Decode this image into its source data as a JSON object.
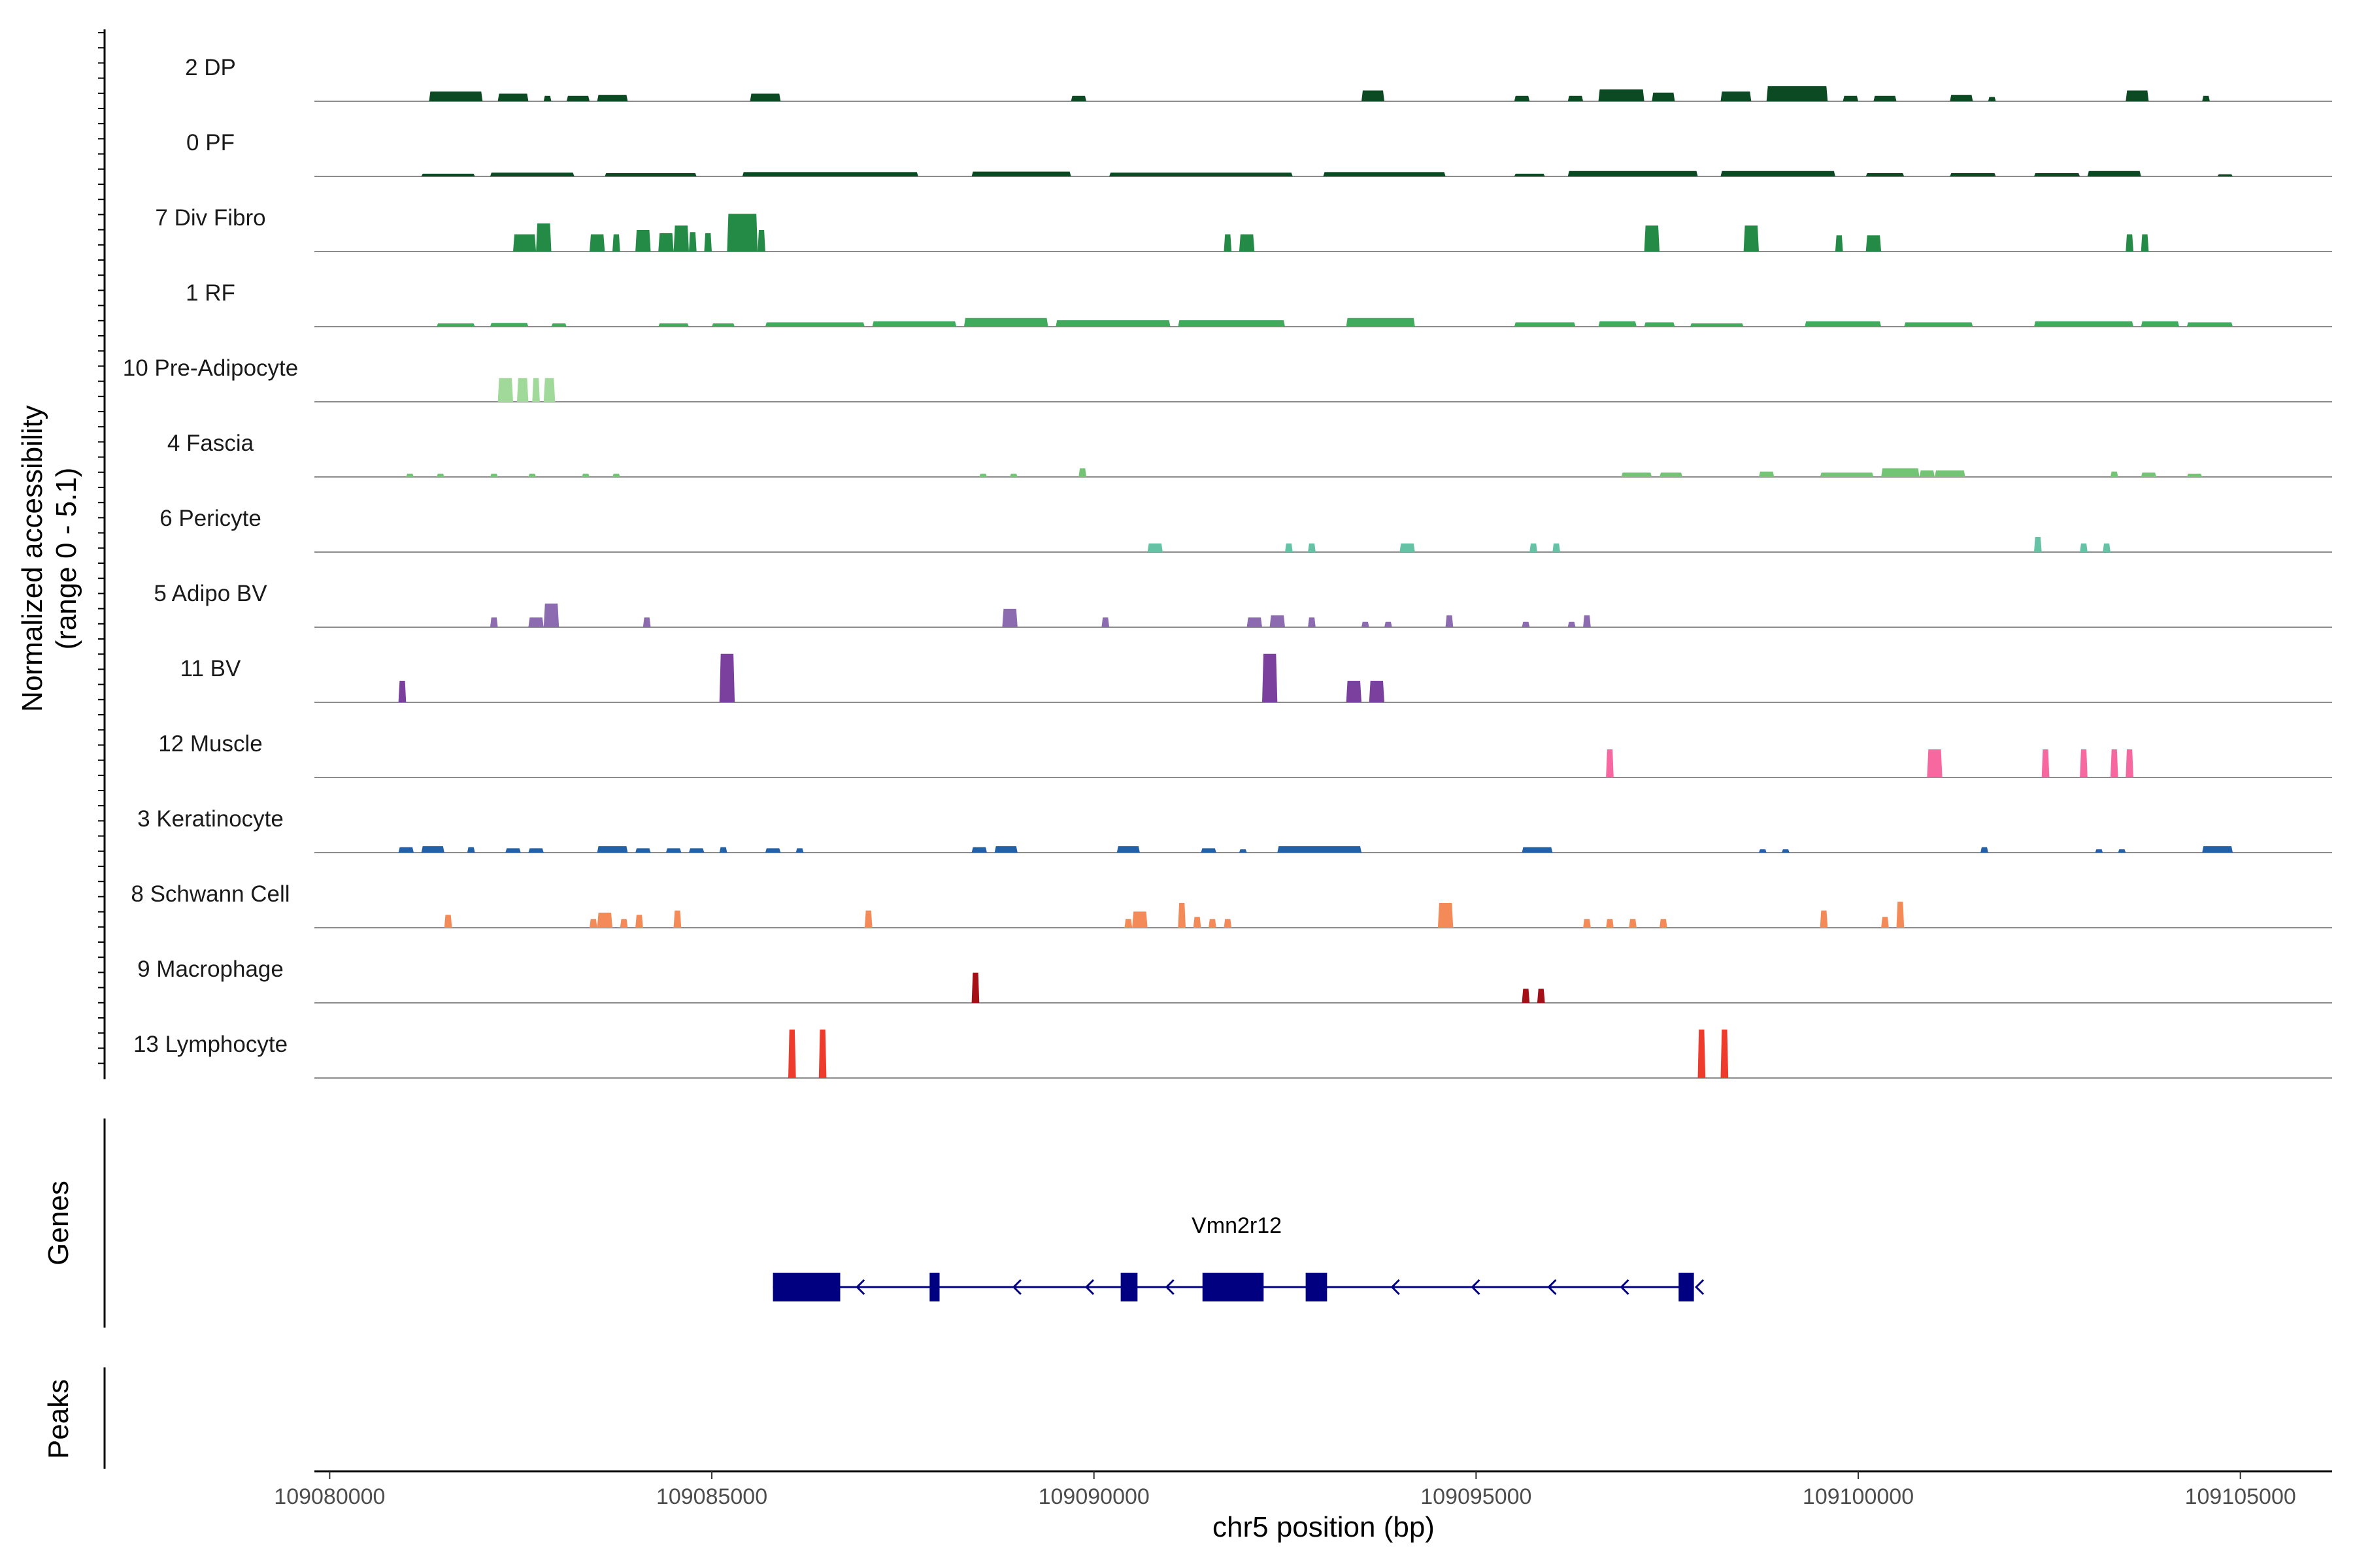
{
  "chart_data": {
    "type": "area",
    "title": "",
    "y_axis_title_line1": "Normalized accessibility",
    "y_axis_title_line2": "(range 0 - 5.1)",
    "y_range": [
      0,
      5.1
    ],
    "xlabel": "chr5 position (bp)",
    "xlim": [
      109079800,
      109106200
    ],
    "x_ticks": [
      109080000,
      109085000,
      109090000,
      109095000,
      109100000,
      109105000
    ],
    "x_tick_labels": [
      "109080000",
      "109085000",
      "109090000",
      "109095000",
      "109100000",
      "109105000"
    ],
    "genes_label": "Genes",
    "peaks_label": "Peaks",
    "tracks": [
      {
        "name": "2 DP",
        "color": "#0b4a22",
        "segments": [
          [
            109081300,
            109082000,
            0.9
          ],
          [
            109082200,
            109082600,
            0.7
          ],
          [
            109082800,
            109082900,
            0.5
          ],
          [
            109083100,
            109083400,
            0.5
          ],
          [
            109083500,
            109083900,
            0.6
          ],
          [
            109085500,
            109085900,
            0.7
          ],
          [
            109089700,
            109089900,
            0.5
          ],
          [
            109093500,
            109093800,
            1.0
          ],
          [
            109095500,
            109095700,
            0.5
          ],
          [
            109096200,
            109096400,
            0.5
          ],
          [
            109096600,
            109097200,
            1.1
          ],
          [
            109097300,
            109097600,
            0.8
          ],
          [
            109098200,
            109098600,
            0.9
          ],
          [
            109098800,
            109099600,
            1.4
          ],
          [
            109099800,
            109100000,
            0.5
          ],
          [
            109100200,
            109100500,
            0.5
          ],
          [
            109101200,
            109101500,
            0.6
          ],
          [
            109101700,
            109101800,
            0.4
          ],
          [
            109103500,
            109103800,
            1.0
          ],
          [
            109104500,
            109104600,
            0.5
          ]
        ]
      },
      {
        "name": "0 PF",
        "color": "#0b4a22",
        "segments": [
          [
            109081200,
            109081900,
            0.25
          ],
          [
            109082100,
            109083200,
            0.35
          ],
          [
            109083600,
            109084800,
            0.3
          ],
          [
            109085400,
            109087700,
            0.4
          ],
          [
            109088400,
            109089700,
            0.45
          ],
          [
            109090200,
            109092600,
            0.35
          ],
          [
            109093000,
            109094600,
            0.4
          ],
          [
            109095500,
            109095900,
            0.25
          ],
          [
            109096200,
            109097900,
            0.5
          ],
          [
            109098200,
            109099700,
            0.5
          ],
          [
            109100100,
            109100600,
            0.3
          ],
          [
            109101200,
            109101800,
            0.3
          ],
          [
            109102300,
            109102900,
            0.3
          ],
          [
            109103000,
            109103700,
            0.5
          ],
          [
            109104700,
            109104900,
            0.2
          ]
        ]
      },
      {
        "name": "7 Div Fibro",
        "color": "#238b45",
        "segments": [
          [
            109082400,
            109082700,
            1.6
          ],
          [
            109082700,
            109082900,
            2.6
          ],
          [
            109083400,
            109083600,
            1.6
          ],
          [
            109083700,
            109083800,
            1.6
          ],
          [
            109084000,
            109084200,
            2.0
          ],
          [
            109084300,
            109084500,
            1.7
          ],
          [
            109084500,
            109084700,
            2.4
          ],
          [
            109084700,
            109084800,
            1.8
          ],
          [
            109084900,
            109085000,
            1.7
          ],
          [
            109085200,
            109085600,
            3.5
          ],
          [
            109085600,
            109085700,
            2.0
          ],
          [
            109091700,
            109091800,
            1.6
          ],
          [
            109091900,
            109092100,
            1.6
          ],
          [
            109097200,
            109097400,
            2.4
          ],
          [
            109098500,
            109098700,
            2.4
          ],
          [
            109099700,
            109099800,
            1.5
          ],
          [
            109100100,
            109100300,
            1.5
          ],
          [
            109103500,
            109103600,
            1.6
          ],
          [
            109103700,
            109103800,
            1.6
          ]
        ]
      },
      {
        "name": "1 RF",
        "color": "#41ab5d",
        "segments": [
          [
            109081400,
            109081900,
            0.3
          ],
          [
            109082100,
            109082600,
            0.35
          ],
          [
            109082900,
            109083100,
            0.3
          ],
          [
            109084300,
            109084700,
            0.3
          ],
          [
            109085000,
            109085300,
            0.3
          ],
          [
            109085700,
            109087000,
            0.4
          ],
          [
            109087100,
            109088200,
            0.5
          ],
          [
            109088300,
            109089400,
            0.8
          ],
          [
            109089500,
            109091000,
            0.6
          ],
          [
            109091100,
            109092500,
            0.6
          ],
          [
            109093300,
            109094200,
            0.8
          ],
          [
            109095500,
            109096300,
            0.4
          ],
          [
            109096600,
            109097100,
            0.5
          ],
          [
            109097200,
            109097600,
            0.4
          ],
          [
            109097800,
            109098500,
            0.3
          ],
          [
            109099300,
            109100300,
            0.5
          ],
          [
            109100600,
            109101500,
            0.4
          ],
          [
            109102300,
            109103600,
            0.5
          ],
          [
            109103700,
            109104200,
            0.5
          ],
          [
            109104300,
            109104900,
            0.4
          ]
        ]
      },
      {
        "name": "10 Pre-Adipocyte",
        "color": "#a1d99b",
        "segments": [
          [
            109082200,
            109082400,
            2.2
          ],
          [
            109082450,
            109082600,
            2.2
          ],
          [
            109082650,
            109082750,
            2.2
          ],
          [
            109082800,
            109082950,
            2.2
          ]
        ]
      },
      {
        "name": "4 Fascia",
        "color": "#74c476",
        "segments": [
          [
            109081000,
            109081100,
            0.3
          ],
          [
            109081400,
            109081500,
            0.3
          ],
          [
            109082100,
            109082200,
            0.3
          ],
          [
            109082600,
            109082700,
            0.3
          ],
          [
            109083300,
            109083400,
            0.3
          ],
          [
            109083700,
            109083800,
            0.3
          ],
          [
            109088500,
            109088600,
            0.3
          ],
          [
            109088900,
            109089000,
            0.3
          ],
          [
            109089800,
            109089900,
            0.8
          ],
          [
            109096900,
            109097300,
            0.4
          ],
          [
            109097400,
            109097700,
            0.4
          ],
          [
            109098700,
            109098900,
            0.5
          ],
          [
            109099500,
            109100200,
            0.4
          ],
          [
            109100300,
            109100800,
            0.8
          ],
          [
            109100800,
            109101000,
            0.6
          ],
          [
            109101000,
            109101400,
            0.6
          ],
          [
            109103300,
            109103400,
            0.5
          ],
          [
            109103700,
            109103900,
            0.4
          ],
          [
            109104300,
            109104500,
            0.3
          ]
        ]
      },
      {
        "name": "6 Pericyte",
        "color": "#66c2a4",
        "segments": [
          [
            109090700,
            109090900,
            0.8
          ],
          [
            109092500,
            109092600,
            0.8
          ],
          [
            109092800,
            109092900,
            0.8
          ],
          [
            109094000,
            109094200,
            0.8
          ],
          [
            109095700,
            109095800,
            0.8
          ],
          [
            109096000,
            109096100,
            0.8
          ],
          [
            109102300,
            109102400,
            1.4
          ],
          [
            109102900,
            109103000,
            0.8
          ],
          [
            109103200,
            109103300,
            0.8
          ]
        ]
      },
      {
        "name": "5 Adipo BV",
        "color": "#8c6bb1",
        "segments": [
          [
            109082100,
            109082200,
            0.9
          ],
          [
            109082600,
            109082800,
            0.9
          ],
          [
            109082800,
            109083000,
            2.2
          ],
          [
            109084100,
            109084200,
            0.9
          ],
          [
            109088800,
            109089000,
            1.7
          ],
          [
            109090100,
            109090200,
            0.9
          ],
          [
            109092000,
            109092200,
            0.9
          ],
          [
            109092300,
            109092500,
            1.1
          ],
          [
            109092800,
            109092900,
            0.9
          ],
          [
            109093500,
            109093600,
            0.5
          ],
          [
            109093800,
            109093900,
            0.5
          ],
          [
            109094600,
            109094700,
            1.1
          ],
          [
            109095600,
            109095700,
            0.5
          ],
          [
            109096200,
            109096300,
            0.5
          ],
          [
            109096400,
            109096500,
            1.1
          ]
        ]
      },
      {
        "name": "11 BV",
        "color": "#7b3f9e",
        "segments": [
          [
            109080900,
            109081000,
            2.0
          ],
          [
            109085100,
            109085300,
            4.5
          ],
          [
            109092200,
            109092400,
            4.5
          ],
          [
            109093300,
            109093500,
            2.0
          ],
          [
            109093600,
            109093800,
            2.0
          ]
        ]
      },
      {
        "name": "12 Muscle",
        "color": "#f768a1",
        "segments": [
          [
            109096700,
            109096800,
            2.6
          ],
          [
            109100900,
            109101100,
            2.6
          ],
          [
            109102400,
            109102500,
            2.6
          ],
          [
            109102900,
            109103000,
            2.6
          ],
          [
            109103300,
            109103400,
            2.6
          ],
          [
            109103500,
            109103600,
            2.6
          ]
        ]
      },
      {
        "name": "3 Keratinocyte",
        "color": "#2260a8",
        "segments": [
          [
            109080900,
            109081100,
            0.5
          ],
          [
            109081200,
            109081500,
            0.6
          ],
          [
            109081800,
            109081900,
            0.5
          ],
          [
            109082300,
            109082500,
            0.4
          ],
          [
            109082600,
            109082800,
            0.4
          ],
          [
            109083500,
            109083900,
            0.6
          ],
          [
            109084000,
            109084200,
            0.4
          ],
          [
            109084400,
            109084600,
            0.4
          ],
          [
            109084700,
            109084900,
            0.4
          ],
          [
            109085100,
            109085200,
            0.5
          ],
          [
            109085700,
            109085900,
            0.4
          ],
          [
            109086100,
            109086200,
            0.4
          ],
          [
            109088400,
            109088600,
            0.5
          ],
          [
            109088700,
            109089000,
            0.6
          ],
          [
            109090300,
            109090600,
            0.6
          ],
          [
            109091400,
            109091600,
            0.4
          ],
          [
            109091900,
            109092000,
            0.3
          ],
          [
            109092400,
            109093500,
            0.6
          ],
          [
            109093400,
            109093500,
            0.4
          ],
          [
            109095600,
            109096000,
            0.5
          ],
          [
            109098700,
            109098800,
            0.3
          ],
          [
            109099000,
            109099100,
            0.3
          ],
          [
            109101600,
            109101700,
            0.5
          ],
          [
            109103100,
            109103200,
            0.3
          ],
          [
            109103400,
            109103500,
            0.3
          ],
          [
            109104500,
            109104900,
            0.6
          ]
        ]
      },
      {
        "name": "8 Schwann Cell",
        "color": "#f48a57",
        "segments": [
          [
            109081500,
            109081600,
            1.2
          ],
          [
            109083400,
            109083500,
            0.8
          ],
          [
            109083500,
            109083700,
            1.4
          ],
          [
            109083800,
            109083900,
            0.8
          ],
          [
            109084000,
            109084100,
            1.2
          ],
          [
            109084500,
            109084600,
            1.6
          ],
          [
            109087000,
            109087100,
            1.6
          ],
          [
            109090400,
            109090500,
            0.8
          ],
          [
            109090500,
            109090700,
            1.5
          ],
          [
            109091100,
            109091200,
            2.3
          ],
          [
            109091300,
            109091400,
            1.0
          ],
          [
            109091500,
            109091600,
            0.8
          ],
          [
            109091700,
            109091800,
            0.8
          ],
          [
            109094500,
            109094700,
            2.3
          ],
          [
            109096400,
            109096500,
            0.8
          ],
          [
            109096700,
            109096800,
            0.8
          ],
          [
            109097000,
            109097100,
            0.8
          ],
          [
            109097400,
            109097500,
            0.8
          ],
          [
            109099500,
            109099600,
            1.6
          ],
          [
            109100300,
            109100400,
            1.0
          ],
          [
            109100500,
            109100600,
            2.4
          ]
        ]
      },
      {
        "name": "9 Macrophage",
        "color": "#a50f15",
        "segments": [
          [
            109088400,
            109088500,
            2.8
          ],
          [
            109095600,
            109095700,
            1.3
          ],
          [
            109095800,
            109095900,
            1.3
          ]
        ]
      },
      {
        "name": "13 Lymphocyte",
        "color": "#ef3b2c",
        "segments": [
          [
            109086000,
            109086100,
            4.5
          ],
          [
            109086400,
            109086500,
            4.5
          ],
          [
            109097900,
            109098000,
            4.5
          ],
          [
            109098200,
            109098300,
            4.5
          ]
        ]
      }
    ],
    "gene": {
      "name": "Vmn2r12",
      "strand": "-",
      "start": 109085800,
      "end": 109097850,
      "color": "#000080",
      "exons": [
        [
          109085800,
          109086680
        ],
        [
          109087850,
          109087980
        ],
        [
          109090350,
          109090570
        ],
        [
          109091420,
          109092220
        ],
        [
          109092770,
          109093050
        ],
        [
          109097650,
          109097850
        ]
      ],
      "arrows": [
        109086900,
        109088950,
        109089900,
        109090950,
        109093900,
        109094950,
        109095950,
        109096900,
        109097880
      ]
    }
  }
}
